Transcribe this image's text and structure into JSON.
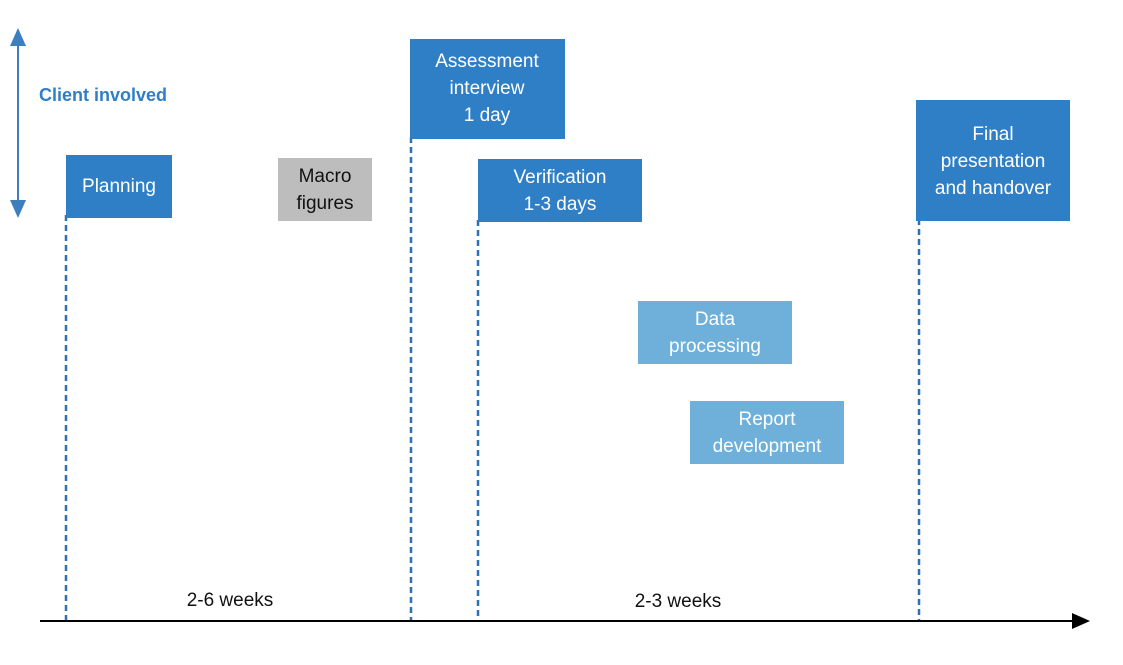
{
  "side_label": "Client involved",
  "nodes": [
    {
      "lines": [
        "Planning"
      ]
    },
    {
      "lines": [
        "Macro",
        "figures"
      ]
    },
    {
      "lines": [
        "Assessment",
        "interview",
        "1 day"
      ]
    },
    {
      "lines": [
        "Verification",
        "1-3 days"
      ]
    },
    {
      "lines": [
        "Data",
        "processing"
      ]
    },
    {
      "lines": [
        "Report",
        "development"
      ]
    },
    {
      "lines": [
        "Final",
        "presentation",
        "and handover"
      ]
    }
  ],
  "durations": [
    "2-6 weeks",
    "2-3 weeks"
  ]
}
